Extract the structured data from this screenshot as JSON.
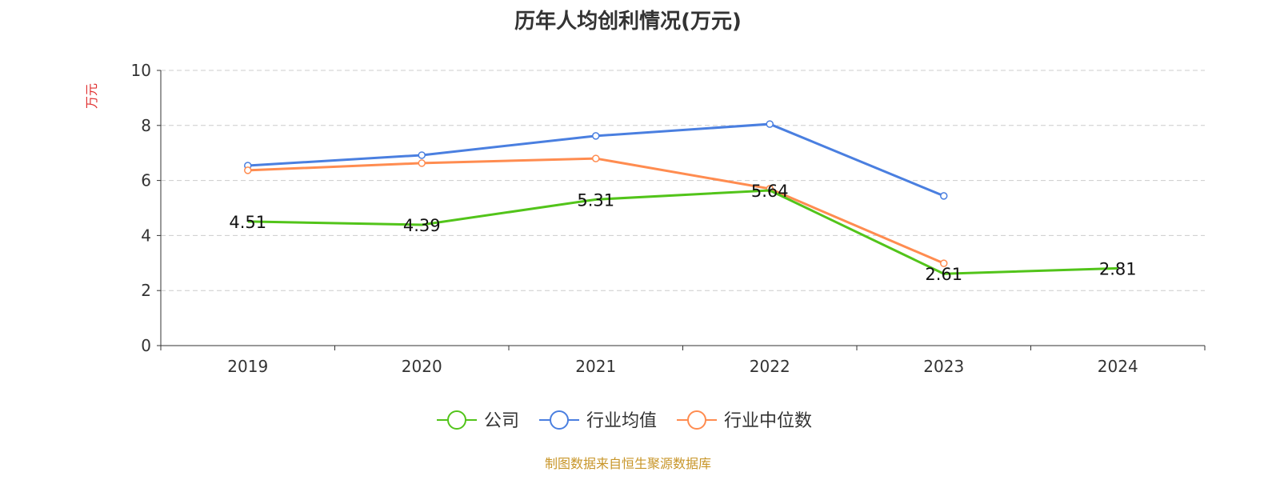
{
  "chart_data": {
    "type": "line",
    "title": "历年人均创利情况(万元)",
    "ylabel": "万元",
    "xlabel": "",
    "ylim": [
      0,
      10
    ],
    "yticks": [
      0,
      2,
      4,
      6,
      8,
      10
    ],
    "grid": true,
    "legend_position": "bottom",
    "categories": [
      "2019",
      "2020",
      "2021",
      "2022",
      "2023",
      "2024"
    ],
    "series": [
      {
        "name": "公司",
        "color": "#52c41a",
        "values": [
          4.51,
          4.39,
          5.31,
          5.64,
          2.61,
          2.81
        ],
        "labels": [
          "4.51",
          "4.39",
          "5.31",
          "5.64",
          "2.61",
          "2.81"
        ],
        "show_labels": true
      },
      {
        "name": "行业均值",
        "color": "#4a7fe0",
        "values": [
          6.54,
          6.92,
          7.62,
          8.05,
          5.44,
          null
        ],
        "show_labels": false
      },
      {
        "name": "行业中位数",
        "color": "#ff8c50",
        "values": [
          6.37,
          6.63,
          6.8,
          5.7,
          2.99,
          null
        ],
        "show_labels": false
      }
    ]
  },
  "source": "制图数据来自恒生聚源数据库"
}
